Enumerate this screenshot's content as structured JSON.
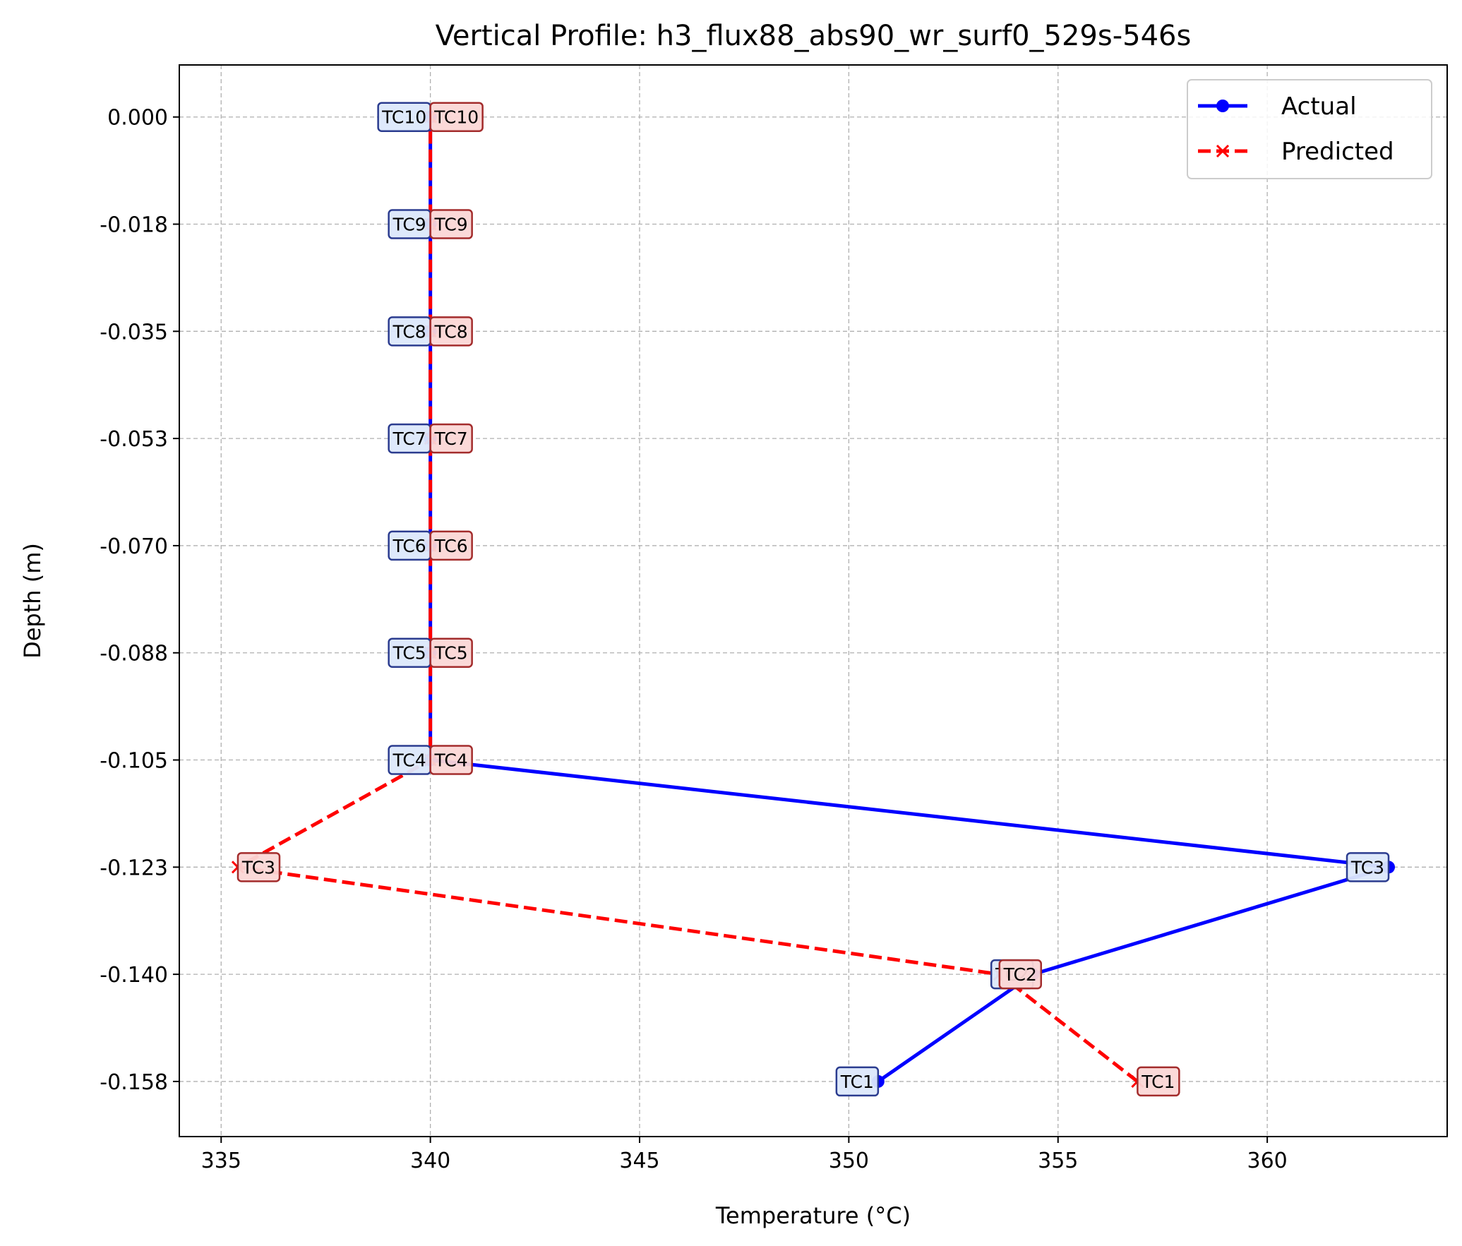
{
  "chart_data": {
    "type": "line",
    "title": "Vertical Profile: h3_flux88_abs90_wr_surf0_529s-546s",
    "xlabel": "Temperature (°C)",
    "ylabel": "Depth (m)",
    "xlim": [
      334,
      364.3
    ],
    "ylim": [
      -0.1665,
      0.0085
    ],
    "xticks": [
      335,
      340,
      345,
      350,
      355,
      360
    ],
    "xtick_labels": [
      "335",
      "340",
      "345",
      "350",
      "355",
      "360"
    ],
    "yticks": [
      0.0,
      -0.0175,
      -0.035,
      -0.0525,
      -0.07,
      -0.0875,
      -0.105,
      -0.1225,
      -0.14,
      -0.1575
    ],
    "ytick_labels": [
      "0.000",
      "-0.018",
      "-0.035",
      "-0.053",
      "-0.070",
      "-0.088",
      "-0.105",
      "-0.123",
      "-0.140",
      "-0.158"
    ],
    "grid": true,
    "legend_position": "upper right",
    "series": [
      {
        "name": "Actual",
        "color": "#0000ff",
        "style": "solid",
        "marker": "circle",
        "points": [
          {
            "label": "TC1",
            "temp": 350.7,
            "depth": -0.1575
          },
          {
            "label": "TC2",
            "temp": 354.4,
            "depth": -0.14
          },
          {
            "label": "TC3",
            "temp": 362.9,
            "depth": -0.1225
          },
          {
            "label": "TC4",
            "temp": 340.0,
            "depth": -0.105
          },
          {
            "label": "TC5",
            "temp": 340.0,
            "depth": -0.0875
          },
          {
            "label": "TC6",
            "temp": 340.0,
            "depth": -0.07
          },
          {
            "label": "TC7",
            "temp": 340.0,
            "depth": -0.0525
          },
          {
            "label": "TC8",
            "temp": 340.0,
            "depth": -0.035
          },
          {
            "label": "TC9",
            "temp": 340.0,
            "depth": -0.0175
          },
          {
            "label": "TC10",
            "temp": 340.0,
            "depth": 0.0
          }
        ]
      },
      {
        "name": "Predicted",
        "color": "#ff0000",
        "style": "dashed",
        "marker": "x",
        "points": [
          {
            "label": "TC1",
            "temp": 356.9,
            "depth": -0.1575
          },
          {
            "label": "TC2",
            "temp": 353.6,
            "depth": -0.14
          },
          {
            "label": "TC3",
            "temp": 335.4,
            "depth": -0.1225
          },
          {
            "label": "TC4",
            "temp": 340.0,
            "depth": -0.105
          },
          {
            "label": "TC5",
            "temp": 340.0,
            "depth": -0.0875
          },
          {
            "label": "TC6",
            "temp": 340.0,
            "depth": -0.07
          },
          {
            "label": "TC7",
            "temp": 340.0,
            "depth": -0.0525
          },
          {
            "label": "TC8",
            "temp": 340.0,
            "depth": -0.035
          },
          {
            "label": "TC9",
            "temp": 340.0,
            "depth": -0.0175
          },
          {
            "label": "TC10",
            "temp": 340.0,
            "depth": 0.0
          }
        ]
      }
    ]
  }
}
